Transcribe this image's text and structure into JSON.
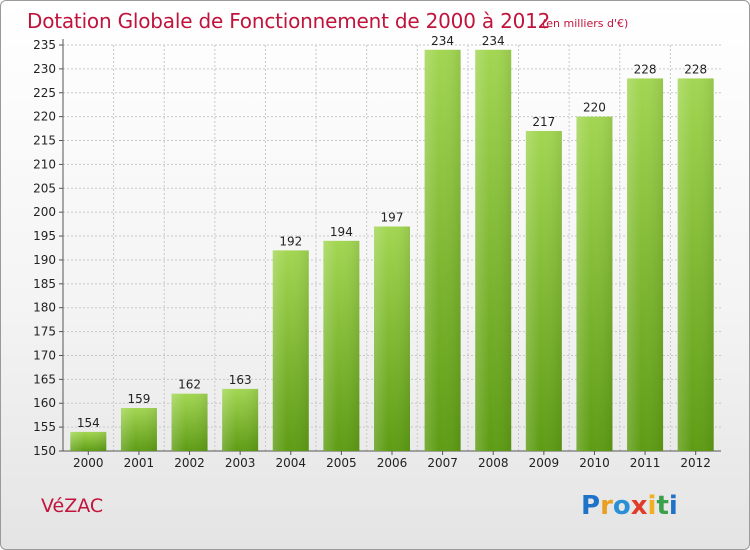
{
  "header": {
    "title": "Dotation Globale de Fonctionnement de 2000 à 2012",
    "unit_note": "(en milliers d'€)"
  },
  "footer": {
    "commune": "VéZAC",
    "brand": "Proxiti"
  },
  "colors": {
    "title": "#c0143c",
    "bar_light": "#9fd24e",
    "bar_dark": "#5c9a12",
    "grid": "#c8c8c8"
  },
  "chart_data": {
    "type": "bar",
    "title": "Dotation Globale de Fonctionnement de 2000 à 2012",
    "subtitle": "(en milliers d'€)",
    "xlabel": "",
    "ylabel": "",
    "categories": [
      "2000",
      "2001",
      "2002",
      "2003",
      "2004",
      "2005",
      "2006",
      "2007",
      "2008",
      "2009",
      "2010",
      "2011",
      "2012"
    ],
    "values": [
      154,
      159,
      162,
      163,
      192,
      194,
      197,
      234,
      234,
      217,
      220,
      228,
      228
    ],
    "ylim": [
      150,
      235
    ],
    "yticks": [
      150,
      155,
      160,
      165,
      170,
      175,
      180,
      185,
      190,
      195,
      200,
      205,
      210,
      215,
      220,
      225,
      230,
      235
    ],
    "grid": true,
    "data_labels": true
  }
}
